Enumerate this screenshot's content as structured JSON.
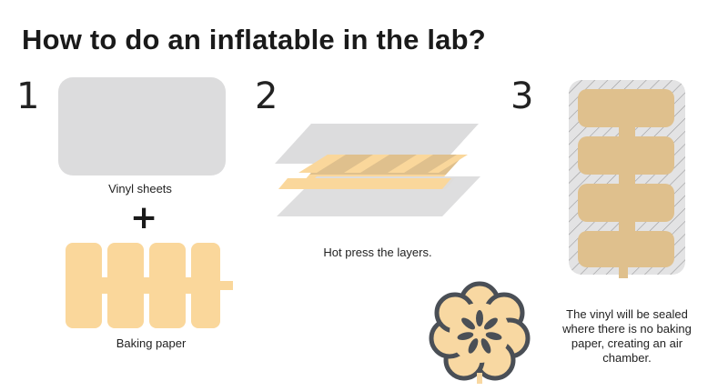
{
  "title": "How to do an inflatable in the lab?",
  "steps": [
    {
      "number": "1",
      "labels": {
        "vinyl": "Vinyl sheets",
        "plus": "+",
        "paper": "Baking paper"
      }
    },
    {
      "number": "2",
      "caption": "Hot press the layers."
    },
    {
      "number": "3",
      "caption_lines": [
        "The vinyl will be sealed",
        "where there is no baking",
        "paper, creating an air",
        "chamber."
      ]
    }
  ],
  "colors": {
    "vinyl": "#dcdcdd",
    "paper": "#fad79b",
    "paper_pressed": "#dfc08d",
    "seal_outline": "#c9c9c9",
    "flower_petals": "#f8d8a2",
    "flower_outline": "#4a4f56",
    "flower_marks": "#4a4f56"
  }
}
